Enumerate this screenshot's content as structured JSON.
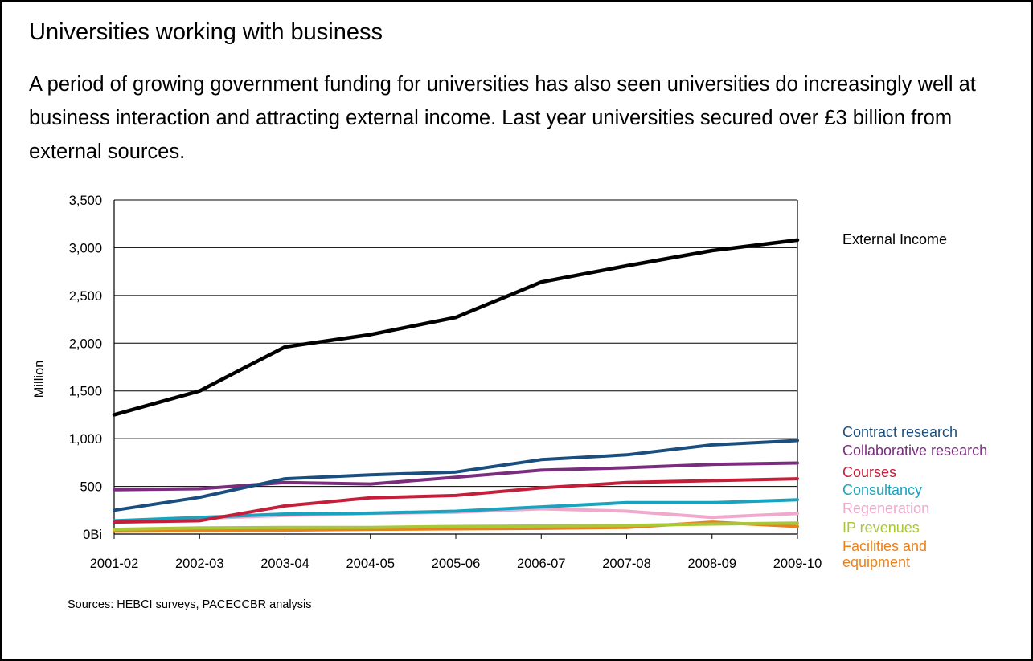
{
  "header": {
    "title": "Universities working with business",
    "description": "A period of growing government funding for universities has also seen universities do increasingly well at business interaction and attracting external income. Last year universities secured over £3 billion from external sources."
  },
  "footer": {
    "source": "Sources: HEBCI surveys, PACECCBR analysis"
  },
  "chart_data": {
    "type": "line",
    "title": "",
    "xlabel": "",
    "ylabel": "Million",
    "x": [
      "2001-02",
      "2002-03",
      "2003-04",
      "2004-05",
      "2005-06",
      "2006-07",
      "2007-08",
      "2008-09",
      "2009-10"
    ],
    "ylim": [
      0,
      3500
    ],
    "yticks": [
      {
        "value": 0,
        "label": "0Bi"
      },
      {
        "value": 500,
        "label": "500"
      },
      {
        "value": 1000,
        "label": "1,000"
      },
      {
        "value": 1500,
        "label": "1,500"
      },
      {
        "value": 2000,
        "label": "2,000"
      },
      {
        "value": 2500,
        "label": "2,500"
      },
      {
        "value": 3000,
        "label": "3,000"
      },
      {
        "value": 3500,
        "label": "3,500"
      }
    ],
    "grid": "horizontal",
    "legend_placement": "right",
    "series": [
      {
        "name": "External Income",
        "color": "#000000",
        "values": [
          1250,
          1500,
          1960,
          2090,
          2270,
          2640,
          2810,
          2970,
          3080
        ]
      },
      {
        "name": "Contract research",
        "color": "#1a4e7e",
        "values": [
          250,
          385,
          580,
          620,
          650,
          780,
          830,
          935,
          980
        ]
      },
      {
        "name": "Collaborative research",
        "color": "#7a2c7e",
        "values": [
          465,
          475,
          540,
          525,
          595,
          670,
          695,
          730,
          745
        ]
      },
      {
        "name": "Courses",
        "color": "#c41e3a",
        "values": [
          125,
          140,
          295,
          380,
          405,
          485,
          540,
          560,
          580
        ]
      },
      {
        "name": "Consultancy",
        "color": "#1aa3bf",
        "values": [
          140,
          175,
          210,
          220,
          240,
          285,
          330,
          330,
          360
        ]
      },
      {
        "name": "Regeneration",
        "color": "#f0a8cc",
        "values": [
          130,
          165,
          195,
          215,
          230,
          265,
          240,
          175,
          215
        ]
      },
      {
        "name": "IP revenues",
        "color": "#a8c83a",
        "values": [
          50,
          65,
          70,
          70,
          80,
          85,
          90,
          105,
          115
        ]
      },
      {
        "name": "Facilities and equipment",
        "color": "#e8821e",
        "values": [
          30,
          35,
          40,
          50,
          55,
          60,
          70,
          125,
          80
        ]
      }
    ]
  }
}
